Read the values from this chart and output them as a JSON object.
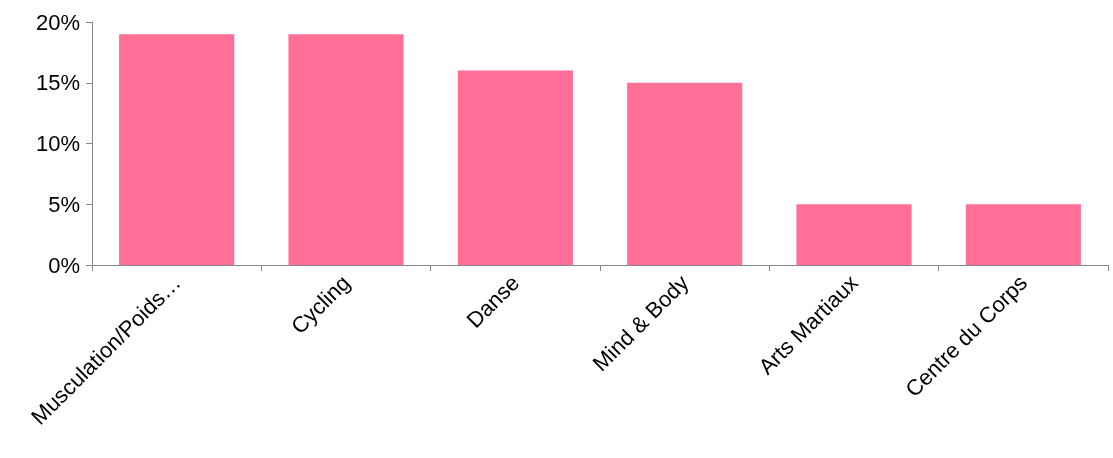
{
  "chart_data": {
    "type": "bar",
    "categories": [
      "Musculation/Poids…",
      "Cycling",
      "Danse",
      "Mind & Body",
      "Arts Martiaux",
      "Centre du Corps"
    ],
    "values": [
      19,
      19,
      16,
      15,
      5,
      5
    ],
    "color": "#ff6f96",
    "ylim": [
      0,
      20
    ],
    "yticks": [
      {
        "value": 0,
        "label": "0%"
      },
      {
        "value": 5,
        "label": "5%"
      },
      {
        "value": 10,
        "label": "10%"
      },
      {
        "value": 15,
        "label": "15%"
      },
      {
        "value": 20,
        "label": "20%"
      }
    ],
    "grid": false
  }
}
